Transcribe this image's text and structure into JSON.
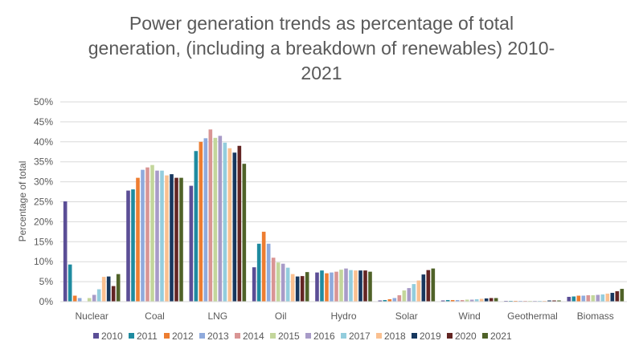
{
  "chart_data": {
    "type": "bar",
    "title": "Power generation trends as percentage of total generation, (including a breakdown of renewables) 2010-2021",
    "title_lines": [
      "Power generation trends as percentage of total",
      "generation, (including a breakdown of renewables) 2010-",
      "2021"
    ],
    "xlabel": "",
    "ylabel": "Percentage of total",
    "ylim": [
      0,
      50
    ],
    "yticks": [
      0,
      5,
      10,
      15,
      20,
      25,
      30,
      35,
      40,
      45,
      50
    ],
    "ytick_labels": [
      "0%",
      "5%",
      "10%",
      "15%",
      "20%",
      "25%",
      "30%",
      "35%",
      "40%",
      "45%",
      "50%"
    ],
    "grid": true,
    "legend_position": "bottom",
    "categories": [
      "Nuclear",
      "Coal",
      "LNG",
      "Oil",
      "Hydro",
      "Solar",
      "Wind",
      "Geothermal",
      "Biomass"
    ],
    "series": [
      {
        "name": "2010",
        "color": "#5B4E96",
        "values": [
          25.1,
          27.8,
          29.0,
          8.6,
          7.3,
          0.3,
          0.3,
          0.2,
          1.2
        ]
      },
      {
        "name": "2011",
        "color": "#1F8BA0",
        "values": [
          9.3,
          28.1,
          37.7,
          14.5,
          7.8,
          0.4,
          0.4,
          0.2,
          1.3
        ]
      },
      {
        "name": "2012",
        "color": "#ED7D31",
        "values": [
          1.5,
          31.0,
          40.0,
          17.5,
          7.1,
          0.6,
          0.4,
          0.2,
          1.5
        ]
      },
      {
        "name": "2013",
        "color": "#8FAADC",
        "values": [
          0.9,
          33.0,
          40.9,
          14.5,
          7.3,
          0.9,
          0.4,
          0.2,
          1.5
        ]
      },
      {
        "name": "2014",
        "color": "#D99594",
        "values": [
          0.0,
          33.6,
          43.1,
          11.0,
          7.5,
          1.6,
          0.4,
          0.2,
          1.6
        ]
      },
      {
        "name": "2015",
        "color": "#C3D69B",
        "values": [
          0.9,
          34.2,
          41.0,
          9.8,
          8.0,
          2.8,
          0.5,
          0.2,
          1.6
        ]
      },
      {
        "name": "2016",
        "color": "#A89BC8",
        "values": [
          1.7,
          32.8,
          41.5,
          9.5,
          8.3,
          3.4,
          0.5,
          0.2,
          1.7
        ]
      },
      {
        "name": "2017",
        "color": "#93CDDD",
        "values": [
          3.1,
          32.8,
          39.8,
          8.5,
          7.9,
          4.4,
          0.6,
          0.2,
          1.8
        ]
      },
      {
        "name": "2018",
        "color": "#FAC090",
        "values": [
          6.2,
          31.6,
          38.4,
          6.9,
          7.8,
          5.3,
          0.7,
          0.2,
          2.0
        ]
      },
      {
        "name": "2019",
        "color": "#17375E",
        "values": [
          6.3,
          31.9,
          37.3,
          6.3,
          7.8,
          6.8,
          0.8,
          0.3,
          2.2
        ]
      },
      {
        "name": "2020",
        "color": "#632523",
        "values": [
          3.9,
          31.0,
          39.0,
          6.4,
          7.8,
          7.9,
          0.9,
          0.3,
          2.6
        ]
      },
      {
        "name": "2021",
        "color": "#4F6228",
        "values": [
          6.9,
          31.0,
          34.5,
          7.4,
          7.5,
          8.3,
          0.9,
          0.3,
          3.2
        ]
      }
    ]
  }
}
